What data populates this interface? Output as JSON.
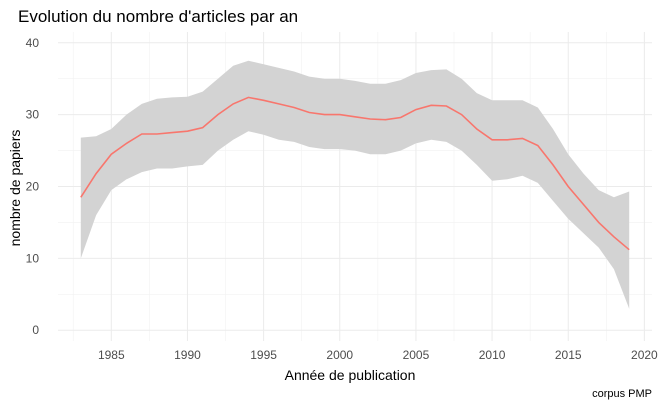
{
  "chart_data": {
    "type": "line",
    "title": "Evolution du nombre d'articles par an",
    "xlabel": "Année de publication",
    "ylabel": "nombre de papiers",
    "caption": "corpus PMP",
    "xlim": [
      1981.5,
      2020.5
    ],
    "ylim": [
      -1.5,
      41.5
    ],
    "x_ticks": [
      1985,
      1990,
      1995,
      2000,
      2005,
      2010,
      2015,
      2020
    ],
    "y_ticks": [
      0,
      10,
      20,
      30,
      40
    ],
    "grid": true,
    "legend": "none",
    "series": [
      {
        "type": "smooth-line-with-confidence-band",
        "color": "#f8766d",
        "band_color": "#d3d3d3",
        "x": [
          1983,
          1984,
          1985,
          1986,
          1987,
          1988,
          1989,
          1990,
          1991,
          1992,
          1993,
          1994,
          1995,
          1996,
          1997,
          1998,
          1999,
          2000,
          2001,
          2002,
          2003,
          2004,
          2005,
          2006,
          2007,
          2008,
          2009,
          2010,
          2011,
          2012,
          2013,
          2014,
          2015,
          2016,
          2017,
          2018,
          2019
        ],
        "y": [
          18.5,
          21.8,
          24.5,
          26.0,
          27.3,
          27.3,
          27.5,
          27.7,
          28.2,
          30.0,
          31.5,
          32.4,
          32.0,
          31.5,
          31.0,
          30.3,
          30.0,
          30.0,
          29.7,
          29.4,
          29.3,
          29.6,
          30.7,
          31.3,
          31.2,
          30.0,
          28.0,
          26.5,
          26.5,
          26.7,
          25.7,
          23.0,
          20.0,
          17.5,
          15.0,
          13.0,
          11.2
        ],
        "lower": [
          10.0,
          16.0,
          19.5,
          21.0,
          22.0,
          22.5,
          22.5,
          22.8,
          23.0,
          25.0,
          26.5,
          27.7,
          27.2,
          26.5,
          26.2,
          25.5,
          25.2,
          25.2,
          25.0,
          24.5,
          24.5,
          25.0,
          26.0,
          26.5,
          26.2,
          25.0,
          23.0,
          20.8,
          21.0,
          21.5,
          20.5,
          18.0,
          15.5,
          13.5,
          11.5,
          8.5,
          3.0
        ],
        "upper": [
          26.8,
          27.0,
          28.0,
          30.0,
          31.5,
          32.2,
          32.4,
          32.5,
          33.2,
          35.0,
          36.8,
          37.5,
          37.0,
          36.5,
          36.0,
          35.3,
          35.0,
          35.0,
          34.7,
          34.3,
          34.3,
          34.8,
          35.8,
          36.2,
          36.3,
          35.0,
          33.0,
          32.0,
          32.0,
          32.0,
          31.0,
          28.0,
          24.5,
          21.8,
          19.5,
          18.5,
          19.3
        ]
      }
    ]
  }
}
